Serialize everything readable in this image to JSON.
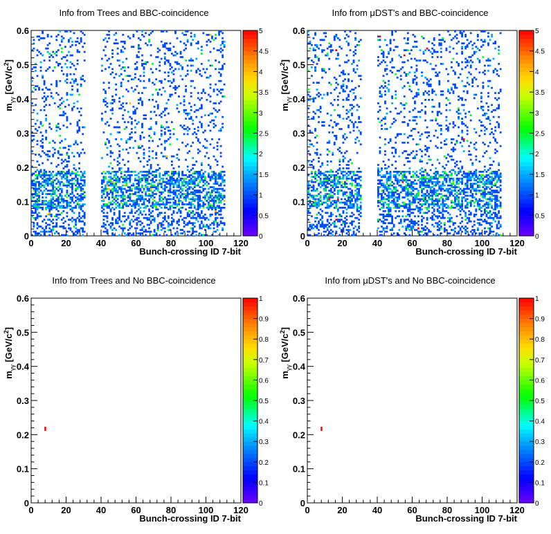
{
  "figure": {
    "x_title": "Bunch-crossing ID 7-bit",
    "y_title_main": "m",
    "y_title_sub": "γγ",
    "y_title_unit": " [GeV/c",
    "y_title_sup": "2",
    "y_title_close": "]"
  },
  "chart_data": [
    {
      "type": "heatmap",
      "title": "Info from Trees and BBC-coincidence",
      "xlabel": "Bunch-crossing ID 7-bit",
      "ylabel": "m_γγ [GeV/c²]",
      "xlim": [
        0,
        120
      ],
      "ylim": [
        0,
        0.6
      ],
      "xticks": [
        0,
        20,
        40,
        60,
        80,
        100,
        120
      ],
      "yticks": [
        0,
        0.1,
        0.2,
        0.3,
        0.4,
        0.5,
        0.6
      ],
      "zlim": [
        0,
        5
      ],
      "zticks": [
        0,
        0.5,
        1,
        1.5,
        2,
        2.5,
        3,
        3.5,
        4,
        4.5,
        5
      ],
      "filled_bunch_ranges": [
        [
          0,
          31
        ],
        [
          40,
          111
        ]
      ],
      "dense_band_y": [
        0.08,
        0.19
      ],
      "typical_content": [
        1,
        2
      ],
      "max_content": 4
    },
    {
      "type": "heatmap",
      "title": "Info from μDST's and BBC-coincidence",
      "xlabel": "Bunch-crossing ID 7-bit",
      "ylabel": "m_γγ [GeV/c²]",
      "xlim": [
        0,
        120
      ],
      "ylim": [
        0,
        0.6
      ],
      "xticks": [
        0,
        20,
        40,
        60,
        80,
        100,
        120
      ],
      "yticks": [
        0,
        0.1,
        0.2,
        0.3,
        0.4,
        0.5,
        0.6
      ],
      "zlim": [
        0,
        5
      ],
      "zticks": [
        0,
        0.5,
        1,
        1.5,
        2,
        2.5,
        3,
        3.5,
        4,
        4.5,
        5
      ],
      "filled_bunch_ranges": [
        [
          0,
          31
        ],
        [
          40,
          111
        ]
      ],
      "dense_band_y": [
        0.08,
        0.19
      ],
      "typical_content": [
        1,
        2
      ],
      "max_content": 5
    },
    {
      "type": "heatmap",
      "title": "Info from Trees and No BBC-coincidence",
      "xlabel": "Bunch-crossing ID 7-bit",
      "ylabel": "m_γγ [GeV/c²]",
      "xlim": [
        0,
        120
      ],
      "ylim": [
        0,
        0.6
      ],
      "xticks": [
        0,
        20,
        40,
        60,
        80,
        100,
        120
      ],
      "yticks": [
        0,
        0.1,
        0.2,
        0.3,
        0.4,
        0.5,
        0.6
      ],
      "zlim": [
        0,
        1
      ],
      "zticks": [
        0,
        0.1,
        0.2,
        0.3,
        0.4,
        0.5,
        0.6,
        0.7,
        0.8,
        0.9,
        1
      ],
      "points": [
        {
          "x": 8,
          "y": 0.215,
          "z": 1
        }
      ]
    },
    {
      "type": "heatmap",
      "title": "Info from μDST's and No BBC-coincidence",
      "xlabel": "Bunch-crossing ID 7-bit",
      "ylabel": "m_γγ [GeV/c²]",
      "xlim": [
        0,
        120
      ],
      "ylim": [
        0,
        0.6
      ],
      "xticks": [
        0,
        20,
        40,
        60,
        80,
        100,
        120
      ],
      "yticks": [
        0,
        0.1,
        0.2,
        0.3,
        0.4,
        0.5,
        0.6
      ],
      "zlim": [
        0,
        1
      ],
      "zticks": [
        0,
        0.1,
        0.2,
        0.3,
        0.4,
        0.5,
        0.6,
        0.7,
        0.8,
        0.9,
        1
      ],
      "points": [
        {
          "x": 8,
          "y": 0.215,
          "z": 1
        }
      ]
    }
  ]
}
